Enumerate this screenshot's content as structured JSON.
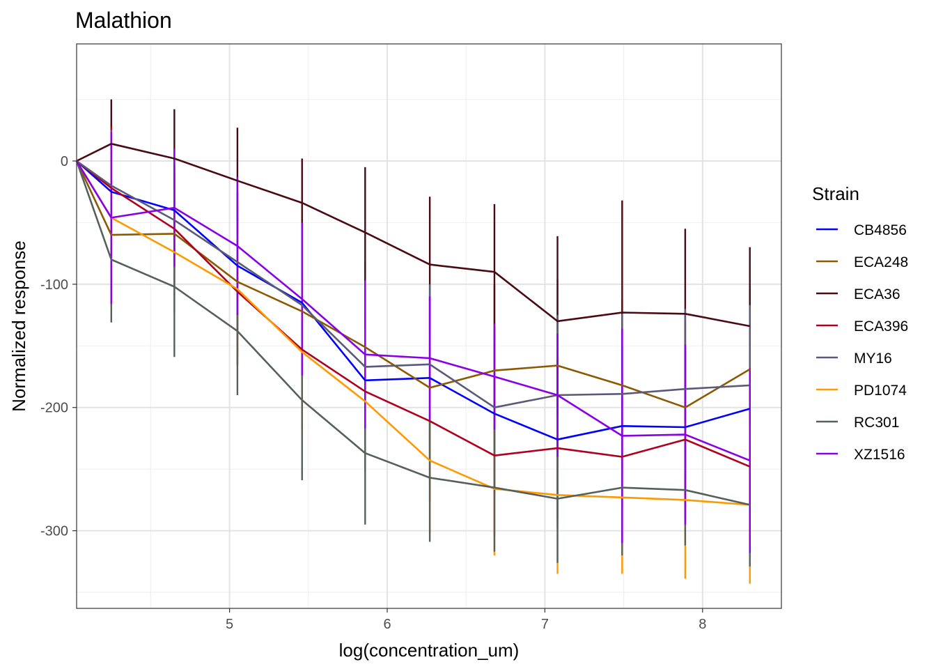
{
  "chart_data": {
    "type": "line",
    "title": "Malathion",
    "xlabel": "log(concentration_um)",
    "ylabel": "Normalized response",
    "xlim": [
      4.03,
      8.5
    ],
    "ylim": [
      -363,
      95
    ],
    "x_ticks": [
      5,
      6,
      7,
      8
    ],
    "y_ticks": [
      0,
      -100,
      -200,
      -300
    ],
    "x_tick_labels": [
      "5",
      "6",
      "7",
      "8"
    ],
    "y_tick_labels": [
      "0",
      "-100",
      "-200",
      "-300"
    ],
    "x_minor_ticks": [
      4.5,
      5.5,
      6.5,
      7.5
    ],
    "y_minor_ticks": [
      50,
      -50,
      -150,
      -250,
      -350
    ],
    "grid": true,
    "legend_title": "Strain",
    "legend_position": "right",
    "x": [
      4.03,
      4.25,
      4.65,
      5.05,
      5.46,
      5.86,
      6.27,
      6.68,
      7.08,
      7.49,
      7.89,
      8.3
    ],
    "series": [
      {
        "name": "CB4856",
        "color": "#0000FF",
        "values": [
          0,
          -25,
          -40,
          -85,
          -115,
          -178,
          -176,
          -205,
          -226,
          -215,
          -216,
          -201
        ],
        "err": [
          0,
          40,
          38,
          60,
          62,
          65,
          65,
          65,
          65,
          65,
          65,
          65
        ]
      },
      {
        "name": "ECA248",
        "color": "#8B5A00",
        "values": [
          0,
          -60,
          -59,
          -98,
          -122,
          -151,
          -184,
          -170,
          -166,
          -182,
          -200,
          -169
        ],
        "err": [
          0,
          55,
          50,
          60,
          75,
          70,
          75,
          70,
          70,
          70,
          70,
          70
        ]
      },
      {
        "name": "ECA36",
        "color": "#4A0A14",
        "values": [
          0,
          14,
          2,
          -16,
          -34,
          -58,
          -84,
          -90,
          -130,
          -123,
          -124,
          -134
        ],
        "err": [
          0,
          36,
          40,
          43,
          36,
          53,
          55,
          55,
          69,
          91,
          69,
          64
        ]
      },
      {
        "name": "ECA396",
        "color": "#B00020",
        "values": [
          0,
          -22,
          -55,
          -106,
          -153,
          -187,
          -211,
          -239,
          -233,
          -240,
          -226,
          -248
        ],
        "err": [
          0,
          50,
          45,
          60,
          65,
          65,
          65,
          65,
          65,
          70,
          65,
          70
        ]
      },
      {
        "name": "MY16",
        "color": "#5A5A78",
        "values": [
          0,
          -20,
          -48,
          -82,
          -117,
          -167,
          -165,
          -200,
          -190,
          -189,
          -185,
          -182
        ],
        "err": [
          0,
          45,
          45,
          55,
          65,
          65,
          65,
          65,
          65,
          65,
          65,
          65
        ]
      },
      {
        "name": "PD1074",
        "color": "#FF9900",
        "values": [
          0,
          -46,
          -74,
          -104,
          -155,
          -195,
          -243,
          -266,
          -271,
          -273,
          -275,
          -279
        ],
        "err": [
          0,
          55,
          50,
          55,
          60,
          58,
          60,
          54,
          64,
          62,
          64,
          64
        ]
      },
      {
        "name": "RC301",
        "color": "#56605A",
        "values": [
          0,
          -80,
          -102,
          -138,
          -194,
          -237,
          -257,
          -265,
          -274,
          -265,
          -267,
          -279
        ],
        "err": [
          0,
          51,
          57,
          52,
          65,
          58,
          52,
          52,
          52,
          55,
          45,
          50
        ]
      },
      {
        "name": "XZ1516",
        "color": "#8A00E6",
        "values": [
          0,
          -46,
          -38,
          -69,
          -112,
          -157,
          -160,
          -175,
          -190,
          -223,
          -222,
          -243
        ],
        "err": [
          0,
          70,
          48,
          56,
          62,
          60,
          50,
          43,
          50,
          87,
          73,
          75
        ]
      }
    ]
  }
}
